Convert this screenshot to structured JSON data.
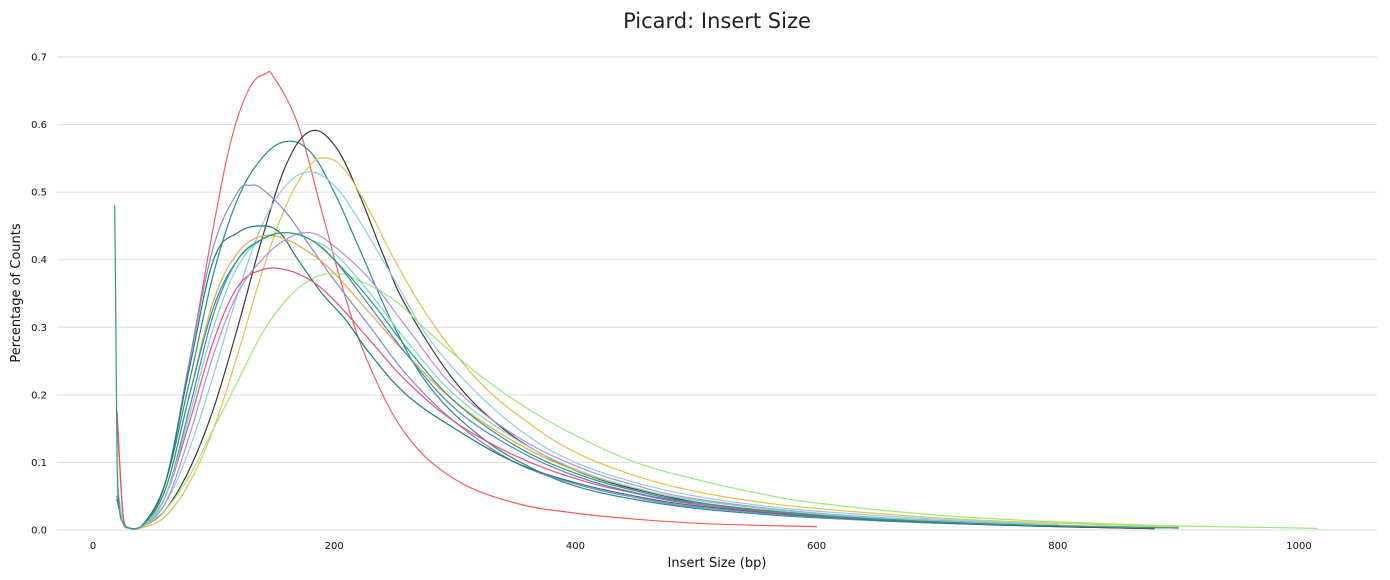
{
  "chart_data": {
    "type": "line",
    "title": "Picard: Insert Size",
    "xlabel": "Insert Size (bp)",
    "ylabel": "Percentage of Counts",
    "xlim": [
      0,
      1060
    ],
    "ylim": [
      0,
      0.7
    ],
    "xticks": [
      0,
      200,
      400,
      600,
      800,
      1000
    ],
    "yticks": [
      0.0,
      0.1,
      0.2,
      0.3,
      0.4,
      0.5,
      0.6,
      0.7
    ],
    "grid": true,
    "legend": "none",
    "series": [
      {
        "color": "#f25f5c",
        "x": [
          20,
          25,
          30,
          40,
          60,
          80,
          100,
          115,
          130,
          143,
          150,
          170,
          190,
          210,
          230,
          260,
          300,
          350,
          400,
          450,
          500,
          550,
          600
        ],
        "y": [
          0.175,
          0.02,
          0.003,
          0.005,
          0.07,
          0.25,
          0.45,
          0.58,
          0.655,
          0.675,
          0.67,
          0.6,
          0.47,
          0.34,
          0.24,
          0.14,
          0.075,
          0.04,
          0.025,
          0.016,
          0.01,
          0.007,
          0.005
        ]
      },
      {
        "color": "#2a8f83",
        "x": [
          20,
          25,
          30,
          40,
          60,
          80,
          100,
          120,
          140,
          160,
          180,
          200,
          220,
          250,
          280,
          320,
          360,
          400,
          450,
          500,
          550,
          600,
          700,
          800,
          880
        ],
        "y": [
          0.045,
          0.01,
          0.003,
          0.005,
          0.07,
          0.22,
          0.38,
          0.49,
          0.55,
          0.575,
          0.56,
          0.5,
          0.42,
          0.3,
          0.21,
          0.14,
          0.095,
          0.065,
          0.045,
          0.032,
          0.024,
          0.018,
          0.01,
          0.005,
          0.002
        ]
      },
      {
        "color": "#3a3a3a",
        "x": [
          20,
          25,
          30,
          40,
          60,
          80,
          100,
          120,
          140,
          160,
          180,
          200,
          220,
          240,
          260,
          300,
          340,
          380,
          420,
          470,
          520,
          600,
          700,
          800,
          880
        ],
        "y": [
          0.045,
          0.01,
          0.003,
          0.004,
          0.03,
          0.09,
          0.18,
          0.3,
          0.43,
          0.54,
          0.59,
          0.57,
          0.5,
          0.41,
          0.33,
          0.22,
          0.15,
          0.105,
          0.075,
          0.052,
          0.036,
          0.022,
          0.011,
          0.005,
          0.002
        ]
      },
      {
        "color": "#e3c34a",
        "x": [
          20,
          25,
          30,
          40,
          60,
          80,
          100,
          120,
          140,
          160,
          180,
          195,
          210,
          230,
          250,
          280,
          320,
          360,
          400,
          450,
          500,
          550,
          600,
          700,
          800,
          900
        ],
        "y": [
          0.155,
          0.02,
          0.003,
          0.003,
          0.02,
          0.07,
          0.15,
          0.26,
          0.38,
          0.48,
          0.54,
          0.55,
          0.53,
          0.47,
          0.4,
          0.31,
          0.22,
          0.16,
          0.115,
          0.08,
          0.057,
          0.042,
          0.032,
          0.018,
          0.01,
          0.005
        ]
      },
      {
        "color": "#8fcde5",
        "x": [
          20,
          25,
          30,
          40,
          60,
          80,
          100,
          120,
          140,
          160,
          180,
          200,
          220,
          250,
          280,
          320,
          360,
          400,
          450,
          500,
          550,
          600,
          700,
          800
        ],
        "y": [
          0.07,
          0.01,
          0.003,
          0.004,
          0.04,
          0.12,
          0.23,
          0.35,
          0.45,
          0.51,
          0.53,
          0.51,
          0.46,
          0.37,
          0.28,
          0.2,
          0.14,
          0.1,
          0.07,
          0.05,
          0.037,
          0.028,
          0.016,
          0.008
        ]
      },
      {
        "color": "#8a84d8",
        "x": [
          20,
          25,
          30,
          40,
          60,
          80,
          100,
          120,
          130,
          140,
          160,
          180,
          200,
          230,
          260,
          300,
          350,
          400,
          450,
          500,
          600,
          700,
          800
        ],
        "y": [
          0.05,
          0.01,
          0.003,
          0.005,
          0.07,
          0.25,
          0.42,
          0.5,
          0.51,
          0.505,
          0.47,
          0.42,
          0.37,
          0.3,
          0.23,
          0.16,
          0.1,
          0.068,
          0.048,
          0.034,
          0.019,
          0.011,
          0.006
        ]
      },
      {
        "color": "#9be87c",
        "x": [
          20,
          25,
          30,
          40,
          60,
          80,
          100,
          120,
          140,
          160,
          180,
          200,
          220,
          250,
          280,
          320,
          360,
          400,
          450,
          500,
          550,
          600,
          700,
          800,
          900,
          1000,
          1015
        ],
        "y": [
          0.06,
          0.01,
          0.003,
          0.004,
          0.03,
          0.08,
          0.15,
          0.22,
          0.29,
          0.34,
          0.37,
          0.38,
          0.37,
          0.34,
          0.29,
          0.23,
          0.18,
          0.14,
          0.1,
          0.075,
          0.055,
          0.04,
          0.022,
          0.012,
          0.006,
          0.003,
          0.002
        ]
      },
      {
        "color": "#1f7a70",
        "x": [
          20,
          25,
          30,
          40,
          60,
          80,
          100,
          120,
          140,
          155,
          170,
          190,
          210,
          230,
          260,
          300,
          350,
          400,
          450,
          500,
          600,
          700,
          800
        ],
        "y": [
          0.05,
          0.01,
          0.003,
          0.005,
          0.07,
          0.24,
          0.4,
          0.44,
          0.45,
          0.44,
          0.4,
          0.35,
          0.31,
          0.26,
          0.2,
          0.15,
          0.1,
          0.07,
          0.05,
          0.036,
          0.02,
          0.011,
          0.006
        ]
      },
      {
        "color": "#e8507a",
        "x": [
          20,
          25,
          30,
          40,
          60,
          80,
          100,
          120,
          140,
          160,
          180,
          200,
          230,
          260,
          300,
          350,
          400,
          450,
          500,
          600,
          700,
          800,
          900
        ],
        "y": [
          0.17,
          0.02,
          0.003,
          0.005,
          0.05,
          0.16,
          0.28,
          0.36,
          0.385,
          0.385,
          0.37,
          0.34,
          0.28,
          0.22,
          0.16,
          0.11,
          0.076,
          0.054,
          0.038,
          0.021,
          0.012,
          0.006,
          0.003
        ]
      },
      {
        "color": "#f0a24a",
        "x": [
          20,
          25,
          30,
          40,
          60,
          80,
          100,
          120,
          140,
          160,
          180,
          200,
          230,
          260,
          300,
          350,
          400,
          450,
          500,
          600,
          700,
          800,
          900
        ],
        "y": [
          0.06,
          0.01,
          0.003,
          0.005,
          0.06,
          0.2,
          0.34,
          0.41,
          0.435,
          0.43,
          0.41,
          0.38,
          0.32,
          0.26,
          0.19,
          0.13,
          0.088,
          0.062,
          0.044,
          0.024,
          0.013,
          0.007,
          0.003
        ]
      },
      {
        "color": "#4a80d8",
        "x": [
          20,
          25,
          30,
          40,
          60,
          80,
          100,
          120,
          140,
          160,
          180,
          200,
          230,
          260,
          300,
          350,
          400,
          450,
          500,
          600,
          700,
          800,
          880
        ],
        "y": [
          0.05,
          0.01,
          0.003,
          0.005,
          0.05,
          0.18,
          0.32,
          0.4,
          0.43,
          0.44,
          0.43,
          0.4,
          0.33,
          0.26,
          0.18,
          0.12,
          0.08,
          0.055,
          0.04,
          0.022,
          0.012,
          0.006,
          0.003
        ]
      },
      {
        "color": "#b58ce8",
        "x": [
          20,
          25,
          30,
          40,
          60,
          80,
          100,
          120,
          140,
          160,
          180,
          200,
          230,
          260,
          300,
          350,
          400,
          450,
          500,
          600,
          700,
          800,
          900
        ],
        "y": [
          0.06,
          0.01,
          0.003,
          0.005,
          0.04,
          0.14,
          0.26,
          0.35,
          0.4,
          0.43,
          0.44,
          0.42,
          0.37,
          0.3,
          0.21,
          0.14,
          0.095,
          0.066,
          0.046,
          0.025,
          0.014,
          0.007,
          0.003
        ]
      },
      {
        "color": "#7fd8c5",
        "x": [
          20,
          25,
          30,
          40,
          60,
          80,
          100,
          120,
          140,
          160,
          180,
          200,
          230,
          260,
          300,
          350,
          400,
          450,
          500,
          600,
          700,
          800,
          900
        ],
        "y": [
          0.06,
          0.01,
          0.003,
          0.005,
          0.05,
          0.17,
          0.3,
          0.39,
          0.43,
          0.44,
          0.43,
          0.41,
          0.35,
          0.28,
          0.2,
          0.135,
          0.09,
          0.062,
          0.044,
          0.024,
          0.013,
          0.007,
          0.003
        ]
      },
      {
        "color": "#2a9d7a",
        "x": [
          18,
          19,
          20,
          22,
          25,
          30,
          40,
          60,
          80,
          100,
          120,
          140,
          160,
          180,
          200,
          230,
          260,
          300,
          350,
          400,
          450,
          500,
          600,
          700,
          800,
          900
        ],
        "y": [
          0.48,
          0.3,
          0.1,
          0.03,
          0.01,
          0.003,
          0.005,
          0.06,
          0.2,
          0.33,
          0.4,
          0.43,
          0.44,
          0.43,
          0.4,
          0.34,
          0.27,
          0.19,
          0.125,
          0.084,
          0.058,
          0.041,
          0.022,
          0.012,
          0.006,
          0.003
        ]
      }
    ]
  }
}
